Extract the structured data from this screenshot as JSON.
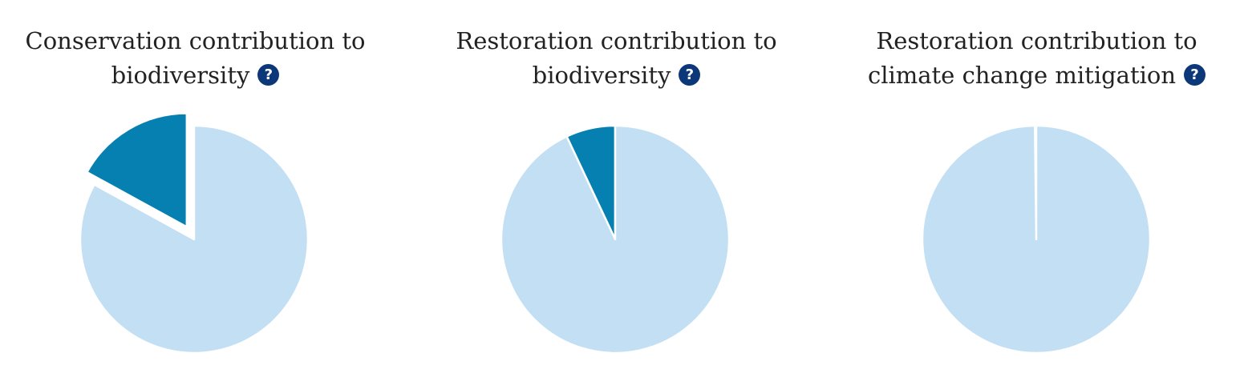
{
  "colors": {
    "remainder": "#c3dff3",
    "contribution": "#0580b1",
    "help_icon": "#0c3879",
    "title_text": "#222222"
  },
  "help_icon_label": "?",
  "chart_data": [
    {
      "type": "pie",
      "title_lines": [
        "Conservation contribution to",
        "biodiversity"
      ],
      "slices": [
        {
          "share": 0.17,
          "color": "#0580b1",
          "exploded": true
        },
        {
          "share": 0.83,
          "color": "#c3dff3",
          "exploded": false
        }
      ]
    },
    {
      "type": "pie",
      "title_lines": [
        "Restoration contribution to",
        "biodiversity"
      ],
      "slices": [
        {
          "share": 0.07,
          "color": "#0580b1",
          "exploded": false
        },
        {
          "share": 0.93,
          "color": "#c3dff3",
          "exploded": false
        }
      ]
    },
    {
      "type": "pie",
      "title_lines": [
        "Restoration contribution to",
        "climate change mitigation"
      ],
      "slices": [
        {
          "share": 0.002,
          "color": "#0580b1",
          "exploded": false
        },
        {
          "share": 0.998,
          "color": "#c3dff3",
          "exploded": false
        }
      ]
    }
  ]
}
